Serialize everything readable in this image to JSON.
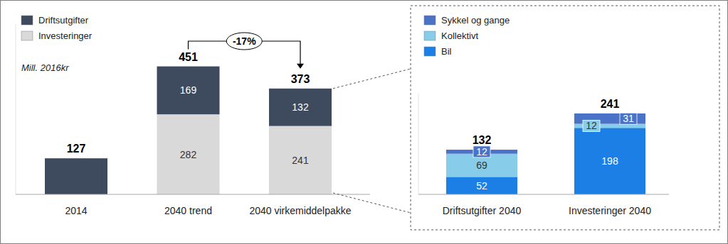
{
  "chart_data": [
    {
      "type": "bar",
      "stacked": true,
      "data_labels": true,
      "tick_labels": "x",
      "legend": "top-left",
      "subtitle": "Mill. 2016kr",
      "categories": [
        "2014",
        "2040 trend",
        "2040 virkemiddelpakke"
      ],
      "series": [
        {
          "name": "Investeringer",
          "color": "#d9d9d9",
          "values": [
            null,
            282,
            241
          ]
        },
        {
          "name": "Driftsutgifter",
          "color": "#3e4a5e",
          "values": [
            127,
            169,
            132
          ]
        }
      ],
      "totals": [
        127,
        451,
        373
      ],
      "annotation": "-17%",
      "ylim": [
        0,
        600
      ]
    },
    {
      "type": "bar",
      "stacked": true,
      "data_labels": true,
      "tick_labels": "x",
      "legend": "top-left",
      "categories": [
        "Driftsutgifter 2040",
        "Investeringer 2040"
      ],
      "series": [
        {
          "name": "Bil",
          "color": "#1c7fe6",
          "values": [
            52,
            198
          ]
        },
        {
          "name": "Kollektivt",
          "color": "#87cdea",
          "values": [
            69,
            12
          ]
        },
        {
          "name": "Sykkel og gange",
          "color": "#4a72c6",
          "values": [
            12,
            31
          ]
        }
      ],
      "totals": [
        132,
        241
      ],
      "ylim": [
        0,
        300
      ]
    }
  ]
}
